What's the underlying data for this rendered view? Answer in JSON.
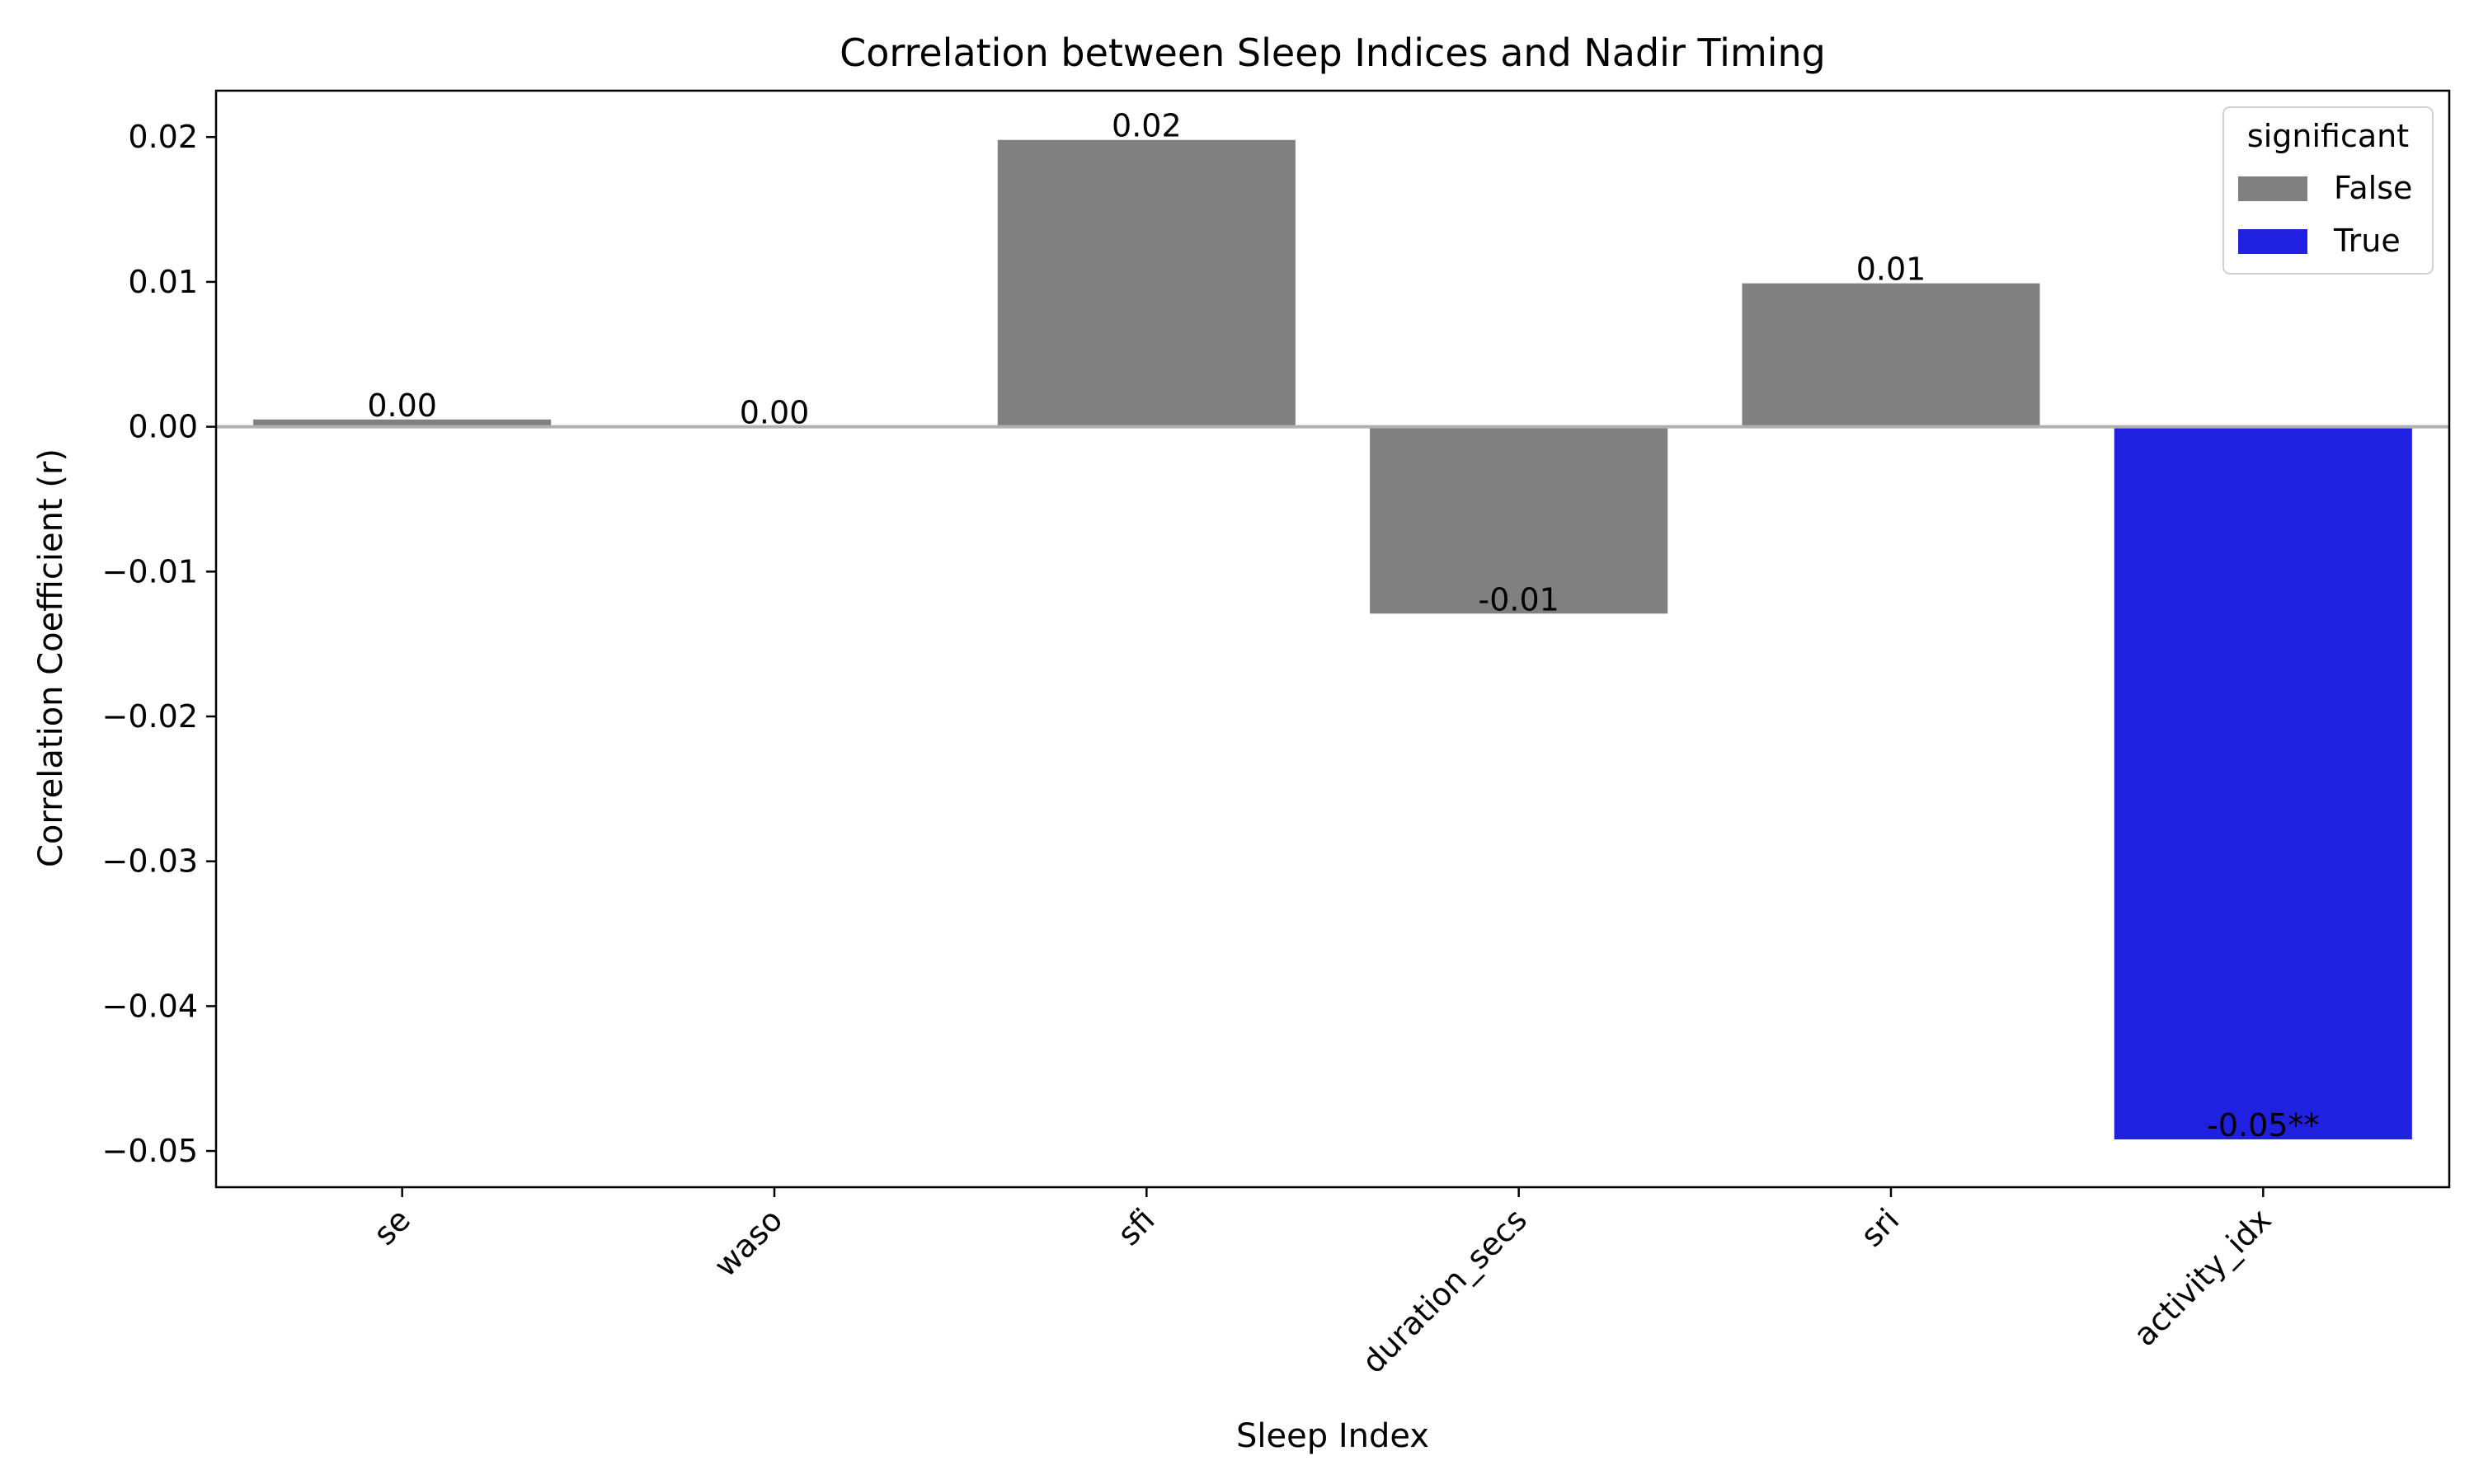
{
  "chart_data": {
    "type": "bar",
    "title": "Correlation between Sleep Indices and Nadir Timing",
    "xlabel": "Sleep Index",
    "ylabel": "Correlation Coefficient (r)",
    "categories": [
      "se",
      "waso",
      "sfi",
      "duration_secs",
      "sri",
      "activity_idx"
    ],
    "values": [
      0.0005,
      0.0,
      0.0198,
      -0.0129,
      0.0099,
      -0.0492
    ],
    "significant": [
      false,
      false,
      false,
      false,
      false,
      true
    ],
    "bar_labels": [
      "0.00",
      "0.00",
      "0.02",
      "-0.01",
      "0.01",
      "-0.05**"
    ],
    "ylim": [
      -0.0525,
      0.0232
    ],
    "yticks": [
      0.02,
      0.01,
      0.0,
      -0.01,
      -0.02,
      -0.03,
      -0.04,
      -0.05
    ],
    "ytick_labels": [
      "0.02",
      "0.01",
      "0.00",
      "−0.01",
      "−0.02",
      "−0.03",
      "−0.04",
      "−0.05"
    ],
    "legend": {
      "title": "significant",
      "placement": "top-right",
      "entries": [
        {
          "label": "False",
          "color": "#808080"
        },
        {
          "label": "True",
          "color": "#2020e0"
        }
      ]
    },
    "zero_line_color": "#b0b0b0",
    "grid": false
  }
}
